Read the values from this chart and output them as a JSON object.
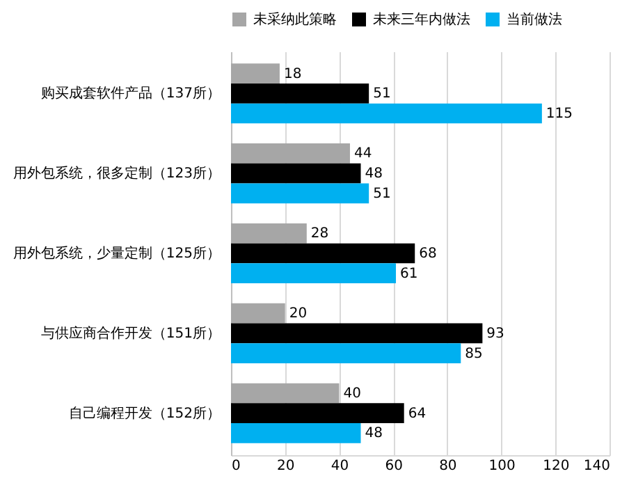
{
  "chart_data": {
    "type": "bar",
    "orientation": "horizontal",
    "categories": [
      "购买成套软件产品（137所）",
      "用外包系统，很多定制（123所）",
      "用外包系统，少量定制（125所）",
      "与供应商合作开发（151所）",
      "自己编程开发（152所）"
    ],
    "series": [
      {
        "name": "未采纳此策略",
        "color": "#a6a6a6",
        "values": [
          18,
          44,
          28,
          20,
          40
        ]
      },
      {
        "name": "未来三年内做法",
        "color": "#000000",
        "values": [
          51,
          48,
          68,
          93,
          64
        ]
      },
      {
        "name": "当前做法",
        "color": "#00b0f0",
        "values": [
          115,
          51,
          61,
          85,
          48
        ]
      }
    ],
    "xlim": [
      0,
      140
    ],
    "xticks": [
      0,
      20,
      40,
      60,
      80,
      100,
      120,
      140
    ],
    "grid": "x",
    "legend": "top",
    "data_labels": true
  }
}
